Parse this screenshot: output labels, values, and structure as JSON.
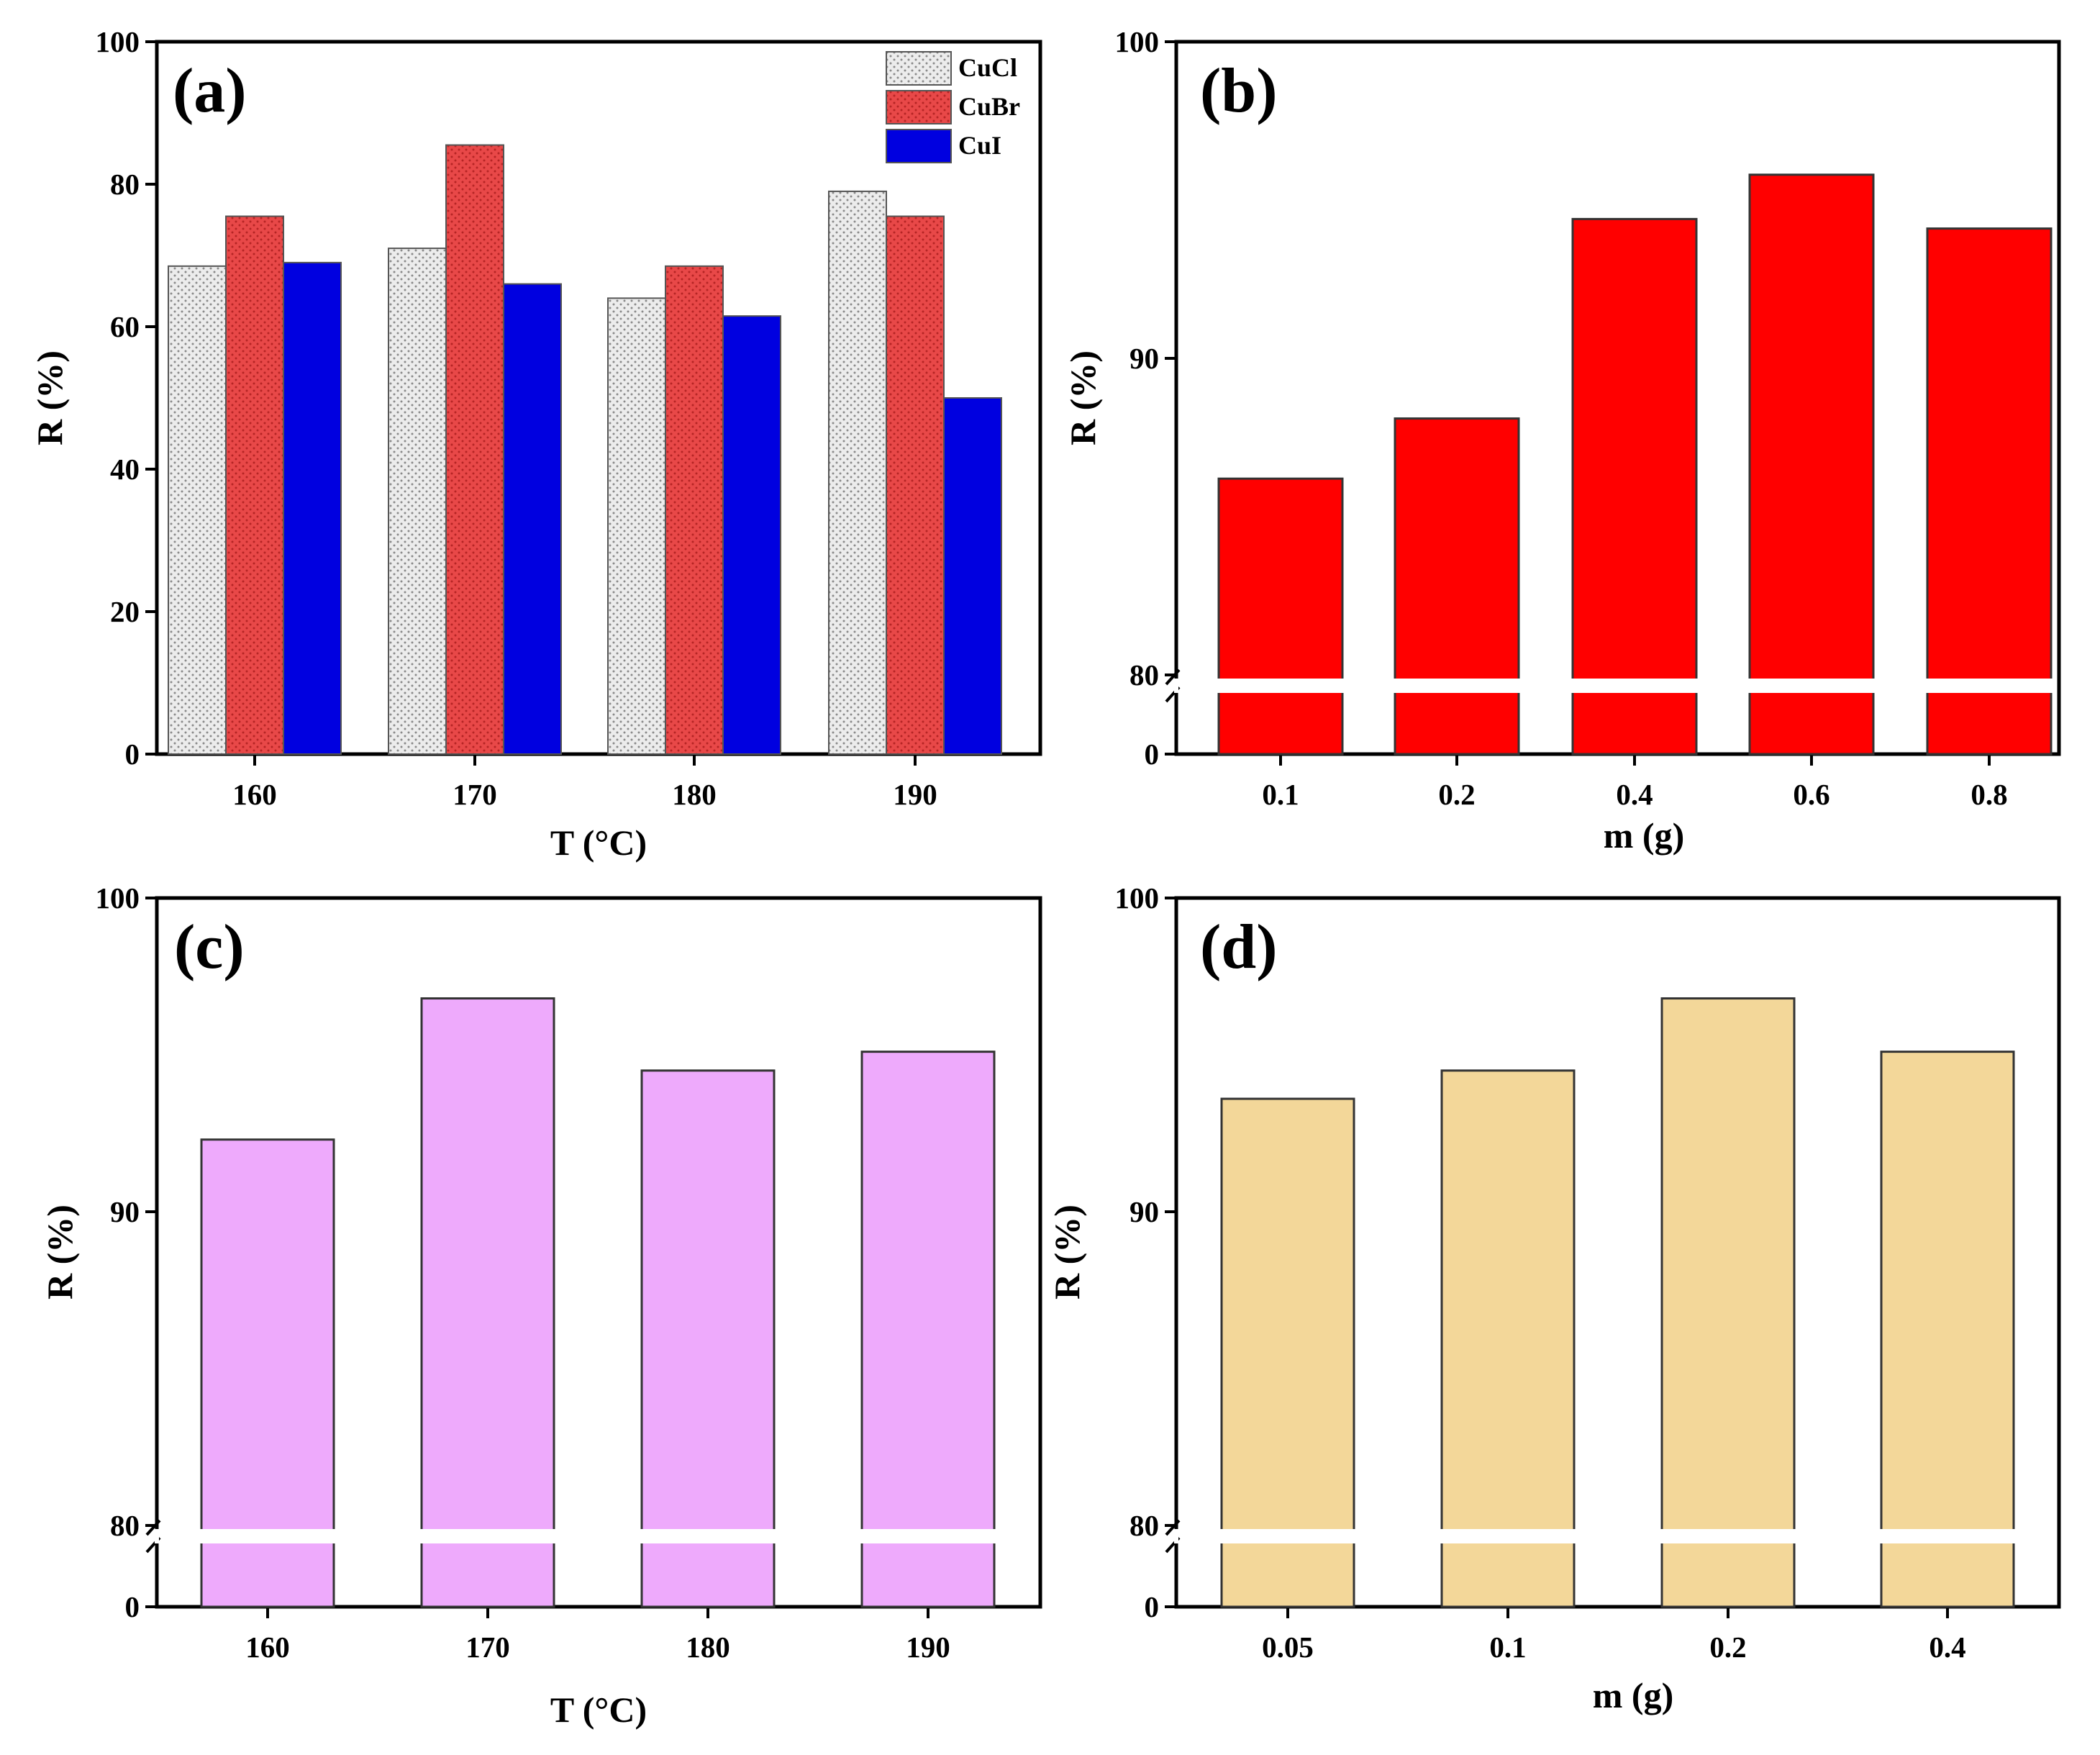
{
  "chart_data": [
    {
      "panel": "(a)",
      "type": "bar",
      "categories": [
        "160",
        "170",
        "180",
        "190"
      ],
      "series": [
        {
          "name": "CuCl",
          "values": [
            68.5,
            71.0,
            64.0,
            79.0
          ],
          "color": "#e8e8e8",
          "pattern": "dots"
        },
        {
          "name": "CuBr",
          "values": [
            75.5,
            85.5,
            68.5,
            75.5
          ],
          "color": "#e84040",
          "pattern": "dots"
        },
        {
          "name": "CuI",
          "values": [
            69.0,
            66.0,
            61.5,
            50.0
          ],
          "color": "#0000e0",
          "pattern": "none"
        }
      ],
      "xlabel": "T (°C)",
      "ylabel": "R (%)",
      "ylim": [
        0,
        100
      ],
      "yticks": [
        "0",
        "20",
        "40",
        "60",
        "80",
        "100"
      ],
      "legend": "top-right"
    },
    {
      "panel": "(b)",
      "type": "bar",
      "categories": [
        "0.1",
        "0.2",
        "0.4",
        "0.6",
        "0.8"
      ],
      "values": [
        86.2,
        88.1,
        94.4,
        95.8,
        94.1
      ],
      "color": "#ff0000",
      "xlabel": "m (g)",
      "ylabel": "R (%)",
      "ylim": [
        80,
        100
      ],
      "axis_break": true,
      "yticks": [
        "0",
        "80",
        "90",
        "100"
      ]
    },
    {
      "panel": "(c)",
      "type": "bar",
      "categories": [
        "160",
        "170",
        "180",
        "190"
      ],
      "values": [
        92.3,
        96.8,
        94.5,
        95.1
      ],
      "color": "#eeaafc",
      "xlabel": "T (°C)",
      "ylabel": "R (%)",
      "ylim": [
        80,
        100
      ],
      "axis_break": true,
      "yticks": [
        "0",
        "80",
        "90",
        "100"
      ]
    },
    {
      "panel": "(d)",
      "type": "bar",
      "categories": [
        "0.05",
        "0.1",
        "0.2",
        "0.4"
      ],
      "values": [
        93.6,
        94.5,
        96.8,
        95.1
      ],
      "color": "#f3d799",
      "xlabel": "m (g)",
      "ylabel": "R (%)",
      "ylim": [
        80,
        100
      ],
      "axis_break": true,
      "yticks": [
        "0",
        "80",
        "90",
        "100"
      ]
    }
  ]
}
